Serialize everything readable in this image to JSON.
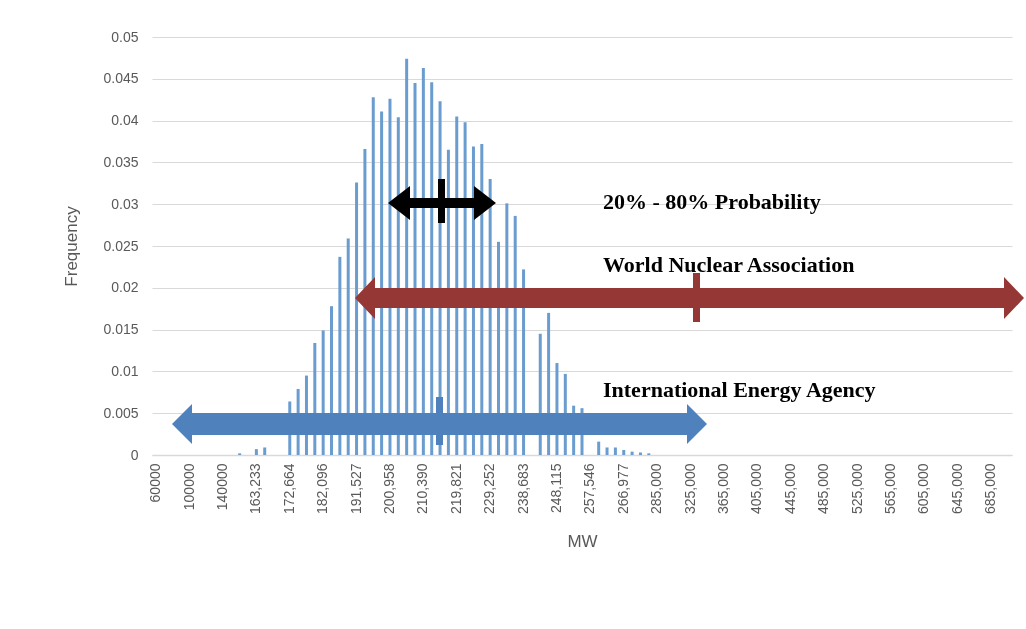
{
  "chart_data": {
    "type": "bar",
    "xlabel": "MW",
    "ylabel": "Frequency",
    "color": "#6a9ccf",
    "grid": "y",
    "ylim": [
      0,
      0.05
    ],
    "yticks": [
      0,
      0.005,
      0.01,
      0.015,
      0.02,
      0.025,
      0.03,
      0.035,
      0.04,
      0.045,
      0.05
    ],
    "categories": [
      "60000",
      null,
      null,
      null,
      "100000",
      null,
      null,
      null,
      "140000",
      null,
      null,
      null,
      "163,233",
      null,
      null,
      null,
      "172,664",
      null,
      null,
      null,
      "182,096",
      null,
      null,
      null,
      "191,527",
      null,
      null,
      null,
      "200,958",
      null,
      null,
      null,
      "210,390",
      null,
      null,
      null,
      "219,821",
      null,
      null,
      null,
      "229,252",
      null,
      null,
      null,
      "238,683",
      null,
      null,
      null,
      "248,115",
      null,
      null,
      null,
      "257,546",
      null,
      null,
      null,
      "266,977",
      null,
      null,
      null,
      "285,000",
      null,
      null,
      null,
      "325,000",
      null,
      null,
      null,
      "365,000",
      null,
      null,
      null,
      "405,000",
      null,
      null,
      null,
      "445,000",
      null,
      null,
      null,
      "485,000",
      null,
      null,
      null,
      "525,000",
      null,
      null,
      null,
      "565,000",
      null,
      null,
      null,
      "605,000",
      null,
      null,
      null,
      "645,000",
      null,
      null,
      null,
      "685,000",
      null,
      null
    ],
    "values": [
      0,
      0,
      0,
      0,
      0,
      0,
      0,
      0,
      0,
      0,
      0.0002,
      0,
      0.0007,
      0.0009,
      null,
      null,
      0.0064,
      0.0079,
      0.0095,
      0.0134,
      0.0149,
      0.0178,
      0.0237,
      0.0259,
      0.0326,
      0.0366,
      0.0428,
      0.0411,
      0.0426,
      0.0404,
      0.0474,
      0.0445,
      0.0463,
      0.0446,
      0.0423,
      0.0365,
      0.0405,
      0.0398,
      0.0369,
      0.0372,
      0.033,
      0.0255,
      0.0301,
      0.0286,
      0.0222,
      null,
      0.0145,
      0.017,
      0.011,
      0.0097,
      0.0059,
      0.0056,
      null,
      0.0016,
      0.0009,
      0.0009,
      0.0006,
      0.0004,
      0.0003,
      0.0002,
      0,
      0,
      0,
      0,
      0,
      0,
      0,
      0,
      0,
      0,
      0,
      0,
      0,
      0,
      0,
      0,
      0,
      0,
      0,
      0,
      0,
      0,
      0,
      0,
      0,
      0,
      0,
      0,
      0,
      0,
      0,
      0,
      0,
      0,
      0,
      0,
      0,
      0,
      0,
      0,
      0,
      0,
      0
    ],
    "annotations": [
      "20% - 80% Probability",
      "World Nuclear Association",
      "International Energy Agency"
    ]
  }
}
